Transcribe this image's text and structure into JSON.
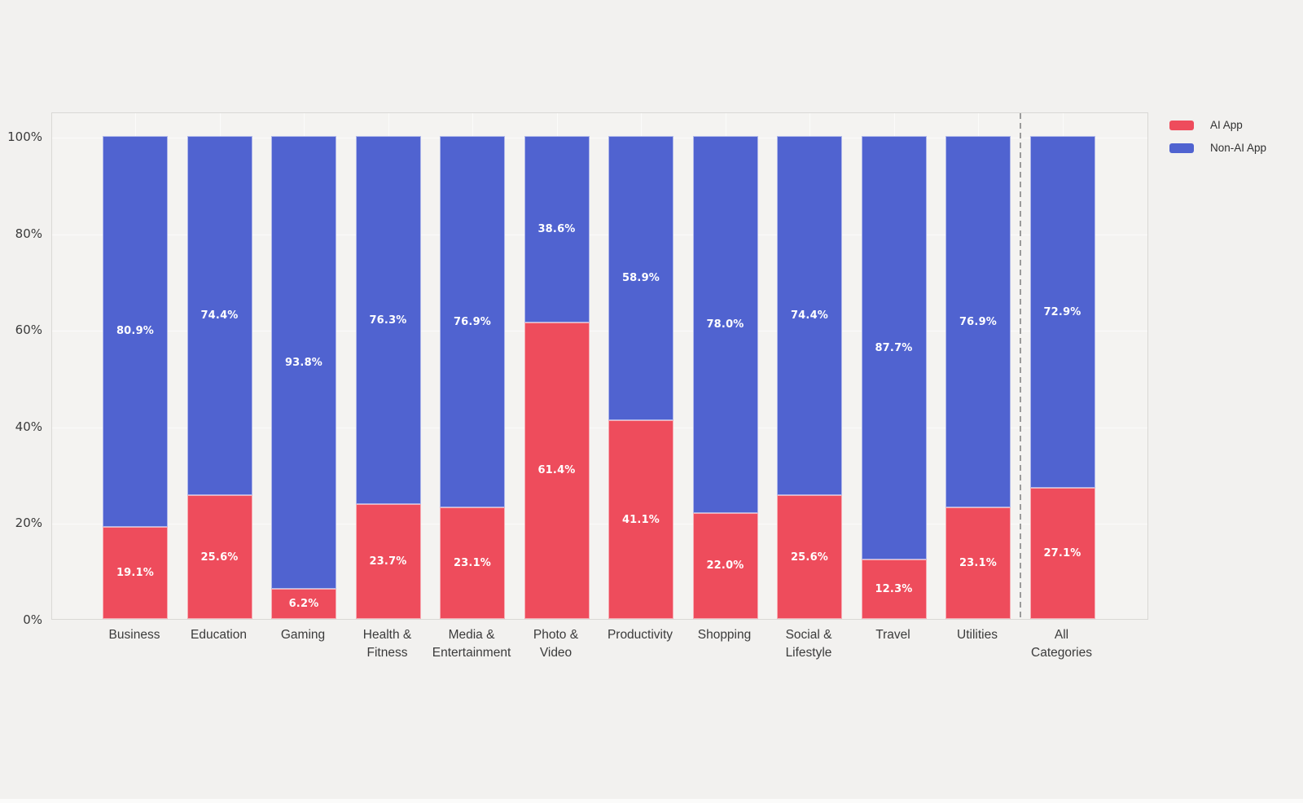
{
  "chart_data": {
    "type": "bar",
    "stacked": true,
    "orientation": "vertical",
    "title": "",
    "xlabel": "",
    "ylabel": "",
    "categories": [
      [
        "Business"
      ],
      [
        "Education"
      ],
      [
        "Gaming"
      ],
      [
        "Health &",
        "Fitness"
      ],
      [
        "Media &",
        "Entertainment"
      ],
      [
        "Photo &",
        "Video"
      ],
      [
        "Productivity"
      ],
      [
        "Shopping"
      ],
      [
        "Social &",
        "Lifestyle"
      ],
      [
        "Travel"
      ],
      [
        "Utilities"
      ],
      [
        "All",
        "Categories"
      ]
    ],
    "series": [
      {
        "name": "AI App",
        "color": "#ee4c5c",
        "values": [
          19.1,
          25.6,
          6.2,
          23.7,
          23.1,
          61.4,
          41.1,
          22.0,
          25.6,
          12.3,
          23.1,
          27.1
        ],
        "labels": [
          "19.1%",
          "25.6%",
          "6.2%",
          "23.7%",
          "23.1%",
          "61.4%",
          "41.1%",
          "22.0%",
          "25.6%",
          "12.3%",
          "23.1%",
          "27.1%"
        ]
      },
      {
        "name": "Non-AI App",
        "color": "#5063d0",
        "values": [
          80.9,
          74.4,
          93.8,
          76.3,
          76.9,
          38.6,
          58.9,
          78.0,
          74.4,
          87.7,
          76.9,
          72.9
        ],
        "labels": [
          "80.9%",
          "74.4%",
          "93.8%",
          "76.3%",
          "76.9%",
          "38.6%",
          "58.9%",
          "78.0%",
          "74.4%",
          "87.7%",
          "76.9%",
          "72.9%"
        ]
      }
    ],
    "ylim": [
      0,
      100
    ],
    "y_ticks": [
      0,
      20,
      40,
      60,
      80,
      100
    ],
    "y_tick_labels": [
      "0%",
      "20%",
      "40%",
      "60%",
      "80%",
      "100%"
    ],
    "grid": true,
    "legend_position": "top-right",
    "legend_entries": [
      "AI App",
      "Non-AI App"
    ],
    "annotations": {
      "dashed_separator_between": [
        "Utilities",
        "All Categories"
      ]
    }
  },
  "colors": {
    "background": "#f2f1ef",
    "plot_background": "#f4f3f1",
    "plot_border": "#d9d8d5",
    "gridline": "#fbfbfa",
    "tick_text": "#3b3b3b",
    "value_text": "#ffffff",
    "separator": "#9b9b9b"
  }
}
